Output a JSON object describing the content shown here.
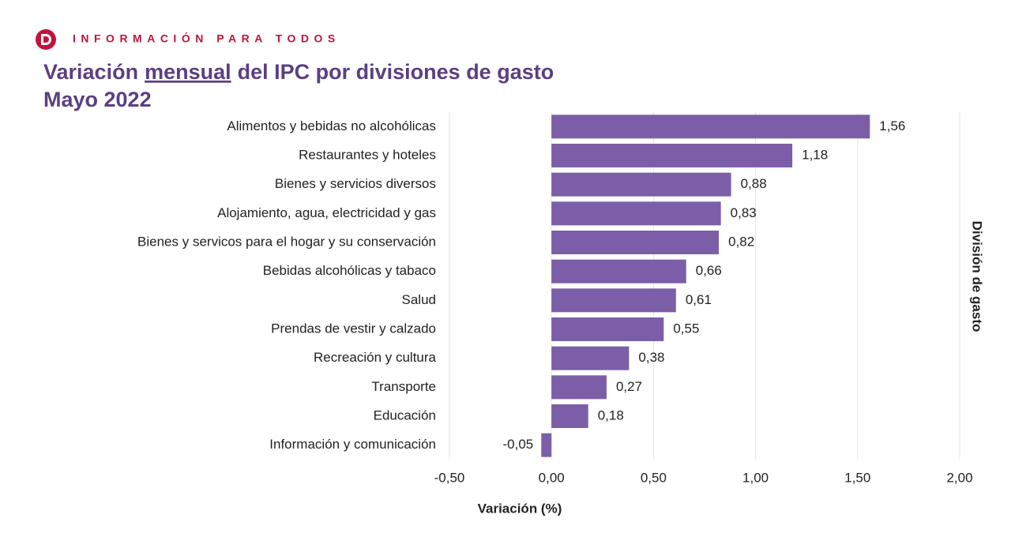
{
  "header": {
    "brand": "INFORMACIÓN PARA TODOS"
  },
  "chart_data": {
    "type": "barh",
    "title": [
      "Variación",
      "mensual",
      "del IPC por divisiones de gasto"
    ],
    "subtitle": "Mayo 2022",
    "x_label": "Variación (%)",
    "y_label": "División de gasto",
    "categories": [
      "Alimentos y bebidas no alcohólicas",
      "Restaurantes y hoteles",
      "Bienes y servicios diversos",
      "Alojamiento, agua, electricidad y gas",
      "Bienes y servicos para el hogar y su conservación",
      "Bebidas alcohólicas y tabaco",
      "Salud",
      "Prendas de vestir y calzado",
      "Recreación y cultura",
      "Transporte",
      "Educación",
      "Información y comunicación"
    ],
    "values": [
      1.56,
      1.18,
      0.88,
      0.83,
      0.82,
      0.66,
      0.61,
      0.55,
      0.38,
      0.27,
      0.18,
      -0.05
    ],
    "value_labels": [
      "1,56",
      "1,18",
      "0,88",
      "0,83",
      "0,82",
      "0,66",
      "0,61",
      "0,55",
      "0,38",
      "0,27",
      "0,18",
      "-0,05"
    ],
    "color": "#7b5ea7",
    "xlim": [
      -0.5,
      2.0
    ],
    "xticks": [
      {
        "value": -0.5,
        "label": "-0,50"
      },
      {
        "value": 0,
        "label": "0,00"
      },
      {
        "value": 0.5,
        "label": "0,50"
      },
      {
        "value": 1.0,
        "label": "1,00"
      },
      {
        "value": 1.5,
        "label": "1,50"
      },
      {
        "value": 2.0,
        "label": "2,00"
      }
    ],
    "grid": true
  }
}
